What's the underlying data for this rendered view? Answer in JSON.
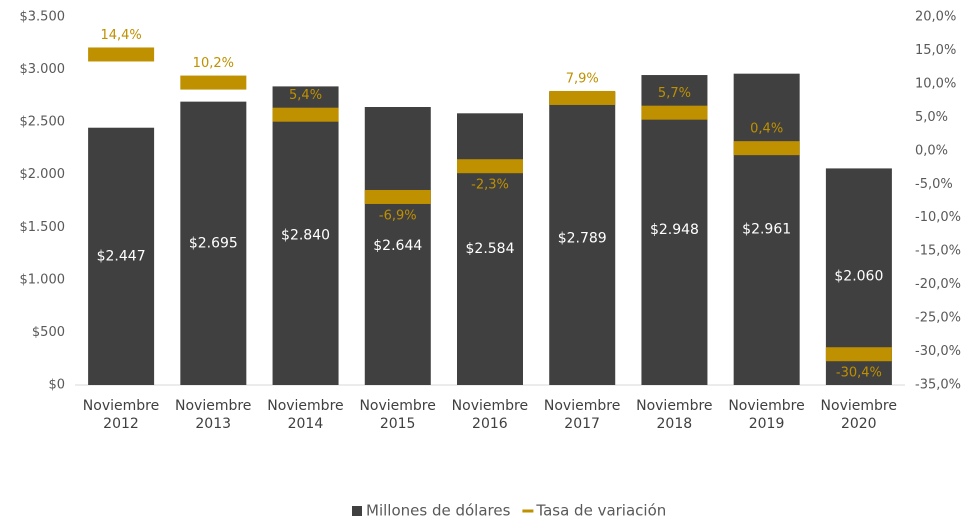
{
  "chart_data": {
    "type": "bar",
    "categories": [
      "Noviembre 2012",
      "Noviembre 2013",
      "Noviembre 2014",
      "Noviembre 2015",
      "Noviembre 2016",
      "Noviembre 2017",
      "Noviembre 2018",
      "Noviembre 2019",
      "Noviembre 2020"
    ],
    "series": [
      {
        "name": "Millones de dólares",
        "color": "#404040",
        "values": [
          2447,
          2695,
          2840,
          2644,
          2584,
          2789,
          2948,
          2961,
          2060
        ],
        "value_labels": [
          "$2.447",
          "$2.695",
          "$2.840",
          "$2.644",
          "$2.584",
          "$2.789",
          "$2.948",
          "$2.961",
          "$2.060"
        ]
      },
      {
        "name": "Tasa de variación",
        "color": "#bf9000",
        "axis": "y2",
        "values": [
          14.4,
          10.2,
          5.4,
          -6.9,
          -2.3,
          7.9,
          5.7,
          0.4,
          -30.4
        ],
        "value_labels": [
          "14,4%",
          "10,2%",
          "5,4%",
          "-6,9%",
          "-2,3%",
          "7,9%",
          "5,7%",
          "0,4%",
          "-30,4%"
        ]
      }
    ],
    "ylim": [
      0,
      3500
    ],
    "yticks": [
      {
        "value": 0,
        "label": "$0"
      },
      {
        "value": 500,
        "label": "$500"
      },
      {
        "value": 1000,
        "label": "$1.000"
      },
      {
        "value": 1500,
        "label": "$1.500"
      },
      {
        "value": 2000,
        "label": "$2.000"
      },
      {
        "value": 2500,
        "label": "$2.500"
      },
      {
        "value": 3000,
        "label": "$3.000"
      },
      {
        "value": 3500,
        "label": "$3.500"
      }
    ],
    "y2lim": [
      -35,
      20
    ],
    "y2ticks": [
      {
        "value": -35,
        "label": "-35,0%"
      },
      {
        "value": -30,
        "label": "-30,0%"
      },
      {
        "value": -25,
        "label": "-25,0%"
      },
      {
        "value": -20,
        "label": "-20,0%"
      },
      {
        "value": -15,
        "label": "-15,0%"
      },
      {
        "value": -10,
        "label": "-10,0%"
      },
      {
        "value": -5,
        "label": "-5,0%"
      },
      {
        "value": 0,
        "label": "0,0%"
      },
      {
        "value": 5,
        "label": "5,0%"
      },
      {
        "value": 10,
        "label": "10,0%"
      },
      {
        "value": 15,
        "label": "15,0%"
      },
      {
        "value": 20,
        "label": "20,0%"
      }
    ],
    "legend": "bottom"
  }
}
